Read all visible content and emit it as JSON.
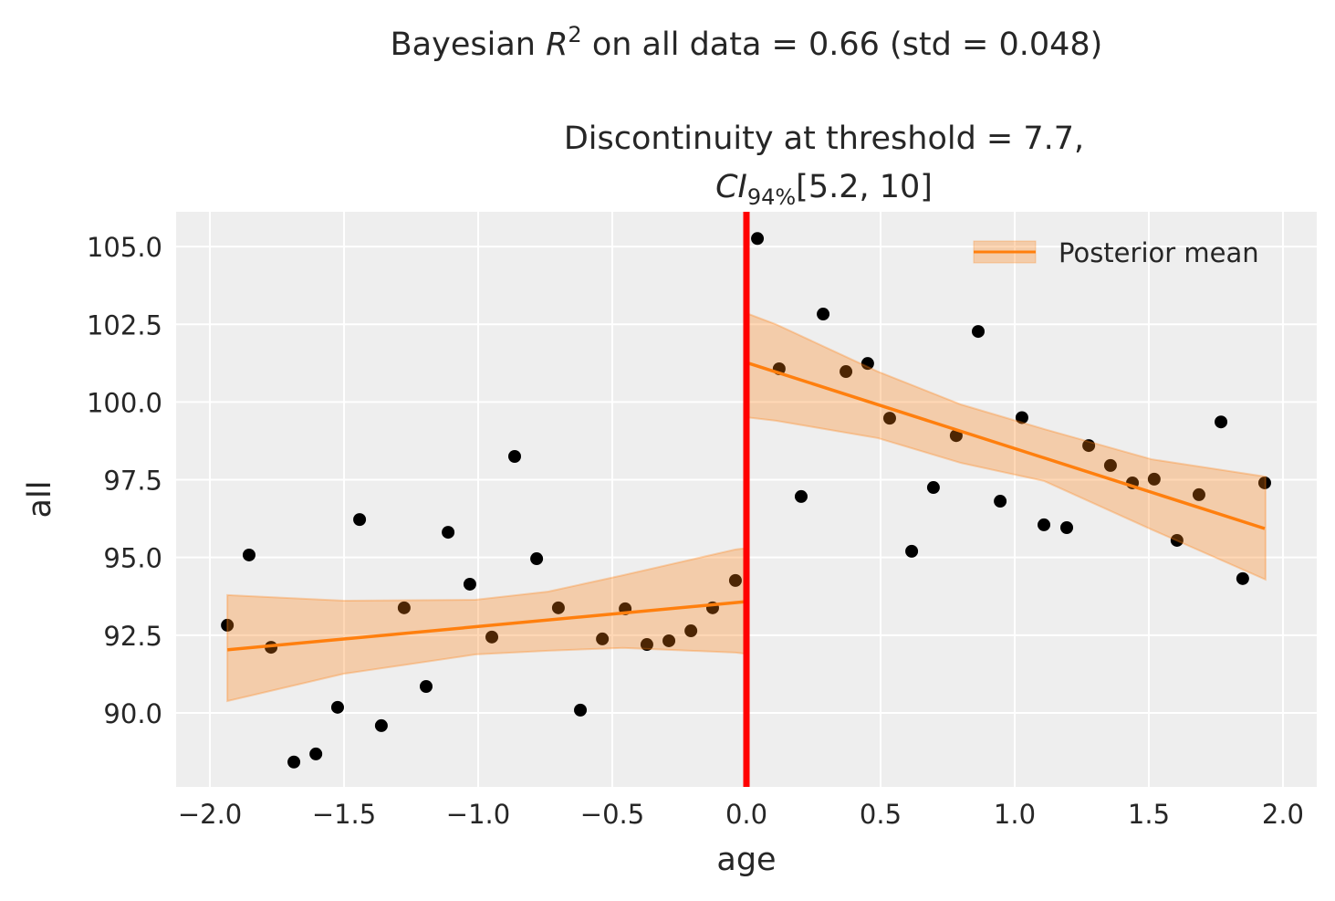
{
  "chart_data": {
    "type": "scatter",
    "suptitle": {
      "prefix": "Bayesian ",
      "symbol": "R",
      "sup": "2",
      "suffix": " on all data = 0.66 (std = 0.048)"
    },
    "title": {
      "line1": "Discontinuity at threshold = 7.7,",
      "ci_symbol": "CI",
      "ci_sub": "94%",
      "ci_range": "[5.2, 10]"
    },
    "xlabel": "age",
    "ylabel": "all",
    "xlim": [
      -2.126,
      2.126
    ],
    "ylim": [
      87.62,
      106.12
    ],
    "xticks": [
      -2.0,
      -1.5,
      -1.0,
      -0.5,
      0.0,
      0.5,
      1.0,
      1.5,
      2.0
    ],
    "xtick_labels": [
      "−2.0",
      "−1.5",
      "−1.0",
      "−0.5",
      "0.0",
      "0.5",
      "1.0",
      "1.5",
      "2.0"
    ],
    "yticks": [
      90.0,
      92.5,
      95.0,
      97.5,
      100.0,
      102.5,
      105.0
    ],
    "ytick_labels": [
      "90.0",
      "92.5",
      "95.0",
      "97.5",
      "100.0",
      "102.5",
      "105.0"
    ],
    "grid": true,
    "legend": {
      "position": "top-right",
      "label": "Posterior mean"
    },
    "threshold": 0.0,
    "colors": {
      "points": "#000000",
      "mean": "#ff7f0e",
      "band": "#ff7f0e",
      "threshold": "#ff0000",
      "background": "#eeeeee"
    },
    "points": {
      "x": [
        -1.935,
        -1.854,
        -1.772,
        -1.687,
        -1.605,
        -1.524,
        -1.442,
        -1.361,
        -1.276,
        -1.194,
        -1.112,
        -1.031,
        -0.949,
        -0.864,
        -0.782,
        -0.701,
        -0.619,
        -0.537,
        -0.452,
        -0.371,
        -0.289,
        -0.207,
        -0.126,
        -0.041,
        0.041,
        0.122,
        0.204,
        0.286,
        0.371,
        0.452,
        0.534,
        0.616,
        0.697,
        0.782,
        0.864,
        0.946,
        1.027,
        1.109,
        1.194,
        1.276,
        1.357,
        1.439,
        1.52,
        1.605,
        1.687,
        1.769,
        1.85,
        1.932
      ],
      "y": [
        92.82,
        95.08,
        92.11,
        88.42,
        88.68,
        90.18,
        96.22,
        89.59,
        93.38,
        90.85,
        95.81,
        94.14,
        92.44,
        98.25,
        94.96,
        93.38,
        90.09,
        92.38,
        93.35,
        92.2,
        92.32,
        92.64,
        93.38,
        94.26,
        105.26,
        101.07,
        96.96,
        102.83,
        100.98,
        101.24,
        99.48,
        95.2,
        97.25,
        98.92,
        102.27,
        96.81,
        99.5,
        96.05,
        95.96,
        98.6,
        97.96,
        97.4,
        97.52,
        95.55,
        97.02,
        99.36,
        94.32,
        97.4
      ]
    },
    "posterior_mean": [
      {
        "x": [
          -1.935,
          0.0
        ],
        "y": [
          92.03,
          93.58
        ]
      },
      {
        "x": [
          0.0,
          1.932
        ],
        "y": [
          101.27,
          95.93
        ]
      }
    ],
    "hdi_band": [
      {
        "x": [
          -1.935,
          -1.5,
          -1.01,
          -0.74,
          -0.46,
          -0.04,
          0.0
        ],
        "upper": [
          93.79,
          93.61,
          93.64,
          93.9,
          94.43,
          95.26,
          95.3
        ],
        "lower": [
          90.38,
          91.26,
          91.88,
          92.0,
          92.09,
          91.94,
          91.9
        ]
      },
      {
        "x": [
          0.0,
          0.11,
          0.49,
          0.8,
          1.11,
          1.51,
          1.935
        ],
        "upper": [
          102.86,
          102.5,
          100.98,
          99.92,
          99.13,
          98.16,
          97.6
        ],
        "lower": [
          99.51,
          99.4,
          98.84,
          98.04,
          97.46,
          95.9,
          94.29
        ]
      }
    ]
  }
}
